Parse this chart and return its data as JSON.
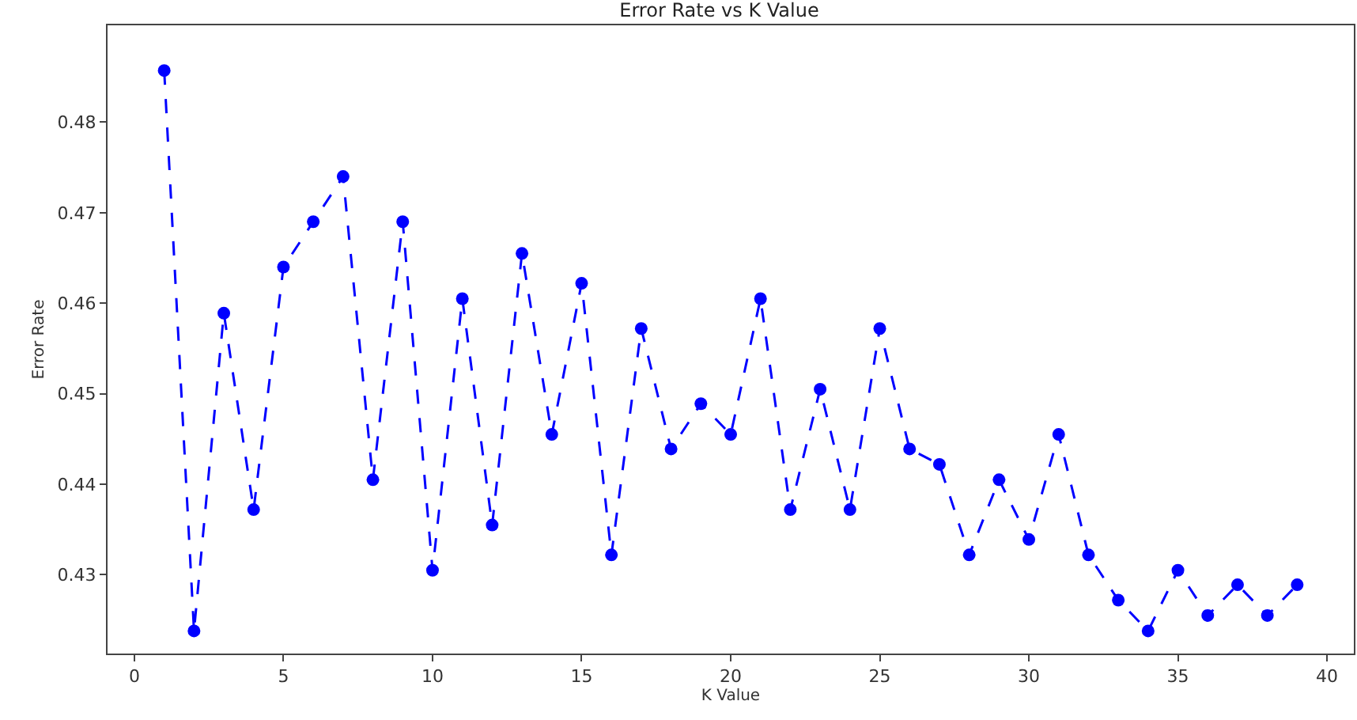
{
  "chart_data": {
    "type": "line",
    "title": "Error Rate vs K Value",
    "xlabel": "K Value",
    "ylabel": "Error Rate",
    "x": [
      1,
      2,
      3,
      4,
      5,
      6,
      7,
      8,
      9,
      10,
      11,
      12,
      13,
      14,
      15,
      16,
      17,
      18,
      19,
      20,
      21,
      22,
      23,
      24,
      25,
      26,
      27,
      28,
      29,
      30,
      31,
      32,
      33,
      34,
      35,
      36,
      37,
      38,
      39
    ],
    "series": [
      {
        "color": "#0000ff",
        "values": [
          0.4857,
          0.4238,
          0.4589,
          0.4372,
          0.464,
          0.469,
          0.474,
          0.4405,
          0.469,
          0.4305,
          0.4605,
          0.4355,
          0.4655,
          0.4455,
          0.4622,
          0.4322,
          0.4572,
          0.4439,
          0.4489,
          0.4455,
          0.4605,
          0.4372,
          0.4505,
          0.4372,
          0.4572,
          0.4439,
          0.4422,
          0.4322,
          0.4405,
          0.4339,
          0.4455,
          0.4322,
          0.4272,
          0.4238,
          0.4305,
          0.4255,
          0.4289,
          0.4255,
          0.4289
        ]
      }
    ],
    "xlim": [
      -0.9,
      40.9
    ],
    "xticks": [
      0,
      5,
      10,
      15,
      20,
      25,
      30,
      35,
      40
    ],
    "ylim": [
      0.4213,
      0.4907
    ],
    "yticks": [
      0.43,
      0.44,
      0.45,
      0.46,
      0.47,
      0.48
    ],
    "grid": false,
    "legend": false,
    "marker": "circle",
    "line_style": "dashed"
  }
}
